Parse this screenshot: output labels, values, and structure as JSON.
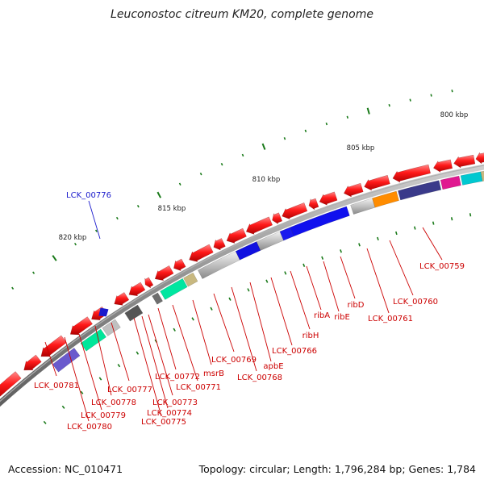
{
  "title": "Leuconostoc citreum KM20, complete genome",
  "footer": {
    "accession": "Accession: NC_010471",
    "summary": "Topology: circular; Length: 1,796,284 bp; Genes: 1,784"
  },
  "ticks": [
    "800 kbp",
    "805 kbp",
    "810 kbp",
    "815 kbp",
    "820 kbp"
  ],
  "highlight_gene": "LCK_00776",
  "labels": [
    "LCK_00759",
    "LCK_00760",
    "LCK_00761",
    "ribD",
    "ribE",
    "ribA",
    "ribH",
    "LCK_00766",
    "apbE",
    "LCK_00768",
    "LCK_00769",
    "msrB",
    "LCK_00771",
    "LCK_00772",
    "LCK_00773",
    "LCK_00774",
    "LCK_00775",
    "LCK_00777",
    "LCK_00778",
    "LCK_00779",
    "LCK_00780",
    "LCK_00781"
  ],
  "colors": {
    "gene": "#e8141e",
    "label": "#cc0000",
    "highlight": "#1a1acc",
    "backbone": "#888888",
    "tick": "#1a7a1a"
  }
}
